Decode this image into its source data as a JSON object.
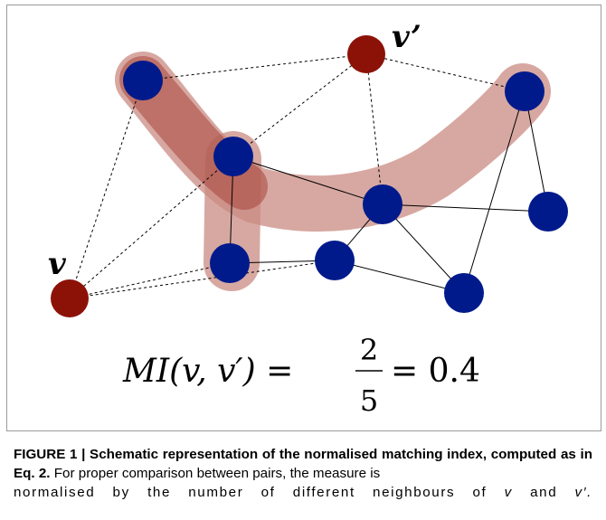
{
  "figure": {
    "node_label_v": "v",
    "node_label_v_prime": "v’",
    "formula": {
      "lhs": "MI(v, v′) =",
      "numerator": "2",
      "denominator": "5",
      "rhs": "= 0.4"
    },
    "colors": {
      "node_blue": "#001a8c",
      "node_red": "#8c1208",
      "highlight_fill": "#c98b82",
      "highlight_dark": "#a8443a"
    }
  },
  "caption": {
    "label": "FIGURE 1 | Schematic representation of the normalised matching index, computed as in Eq. 2.",
    "text_line1": "For proper comparison between pairs, the measure is",
    "text_line2_a": "normalised by the number of different neighbours of",
    "var_v": "v",
    "text_and": "and",
    "var_v_prime": "v′."
  }
}
